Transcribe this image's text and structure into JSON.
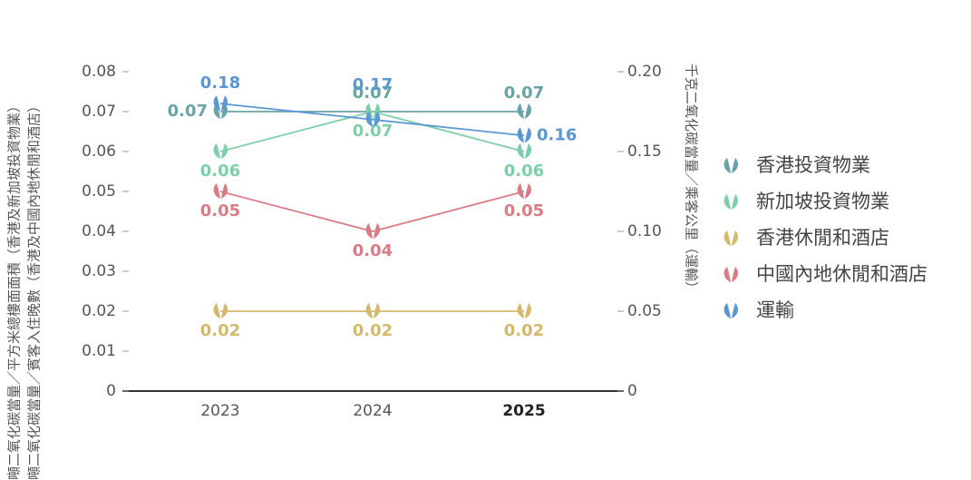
{
  "chart_data": {
    "type": "line",
    "y_label_lines": [
      "噸二氧化碳當量／平方米總樓面面積（香港及新加坡投資物業）",
      "噸二氧化碳當量／賓客入住晚數（香港及中國內地休閒和酒店）"
    ],
    "y2_label": "千克二氧化碳當量／乘客公里（運輸）",
    "categories": [
      "2023",
      "2024",
      "2025"
    ],
    "ylim": [
      0,
      0.08
    ],
    "yticks": [
      0,
      0.01,
      0.02,
      0.03,
      0.04,
      0.05,
      0.06,
      0.07,
      0.08
    ],
    "y2lim": [
      0,
      0.2
    ],
    "y2ticks": [
      0,
      0.05,
      {
        "value": 0.1,
        "label": "0.10"
      },
      0.15,
      {
        "value": 0.2,
        "label": "0.20"
      }
    ],
    "series": [
      {
        "name": "香港投資物業",
        "color": "#6aa3a6",
        "values": [
          0.07,
          0.07,
          0.07
        ]
      },
      {
        "name": "新加坡投資物業",
        "color": "#7ccfa6",
        "values": [
          0.06,
          0.07,
          0.06
        ]
      },
      {
        "name": "香港休閒和酒店",
        "color": "#d3b96c",
        "values": [
          0.02,
          0.02,
          0.02
        ]
      },
      {
        "name": "中國內地休閒和酒店",
        "color": "#d97c86",
        "values": [
          0.05,
          0.04,
          0.05
        ]
      },
      {
        "name": "運輸",
        "color": "#5b97d3",
        "values": [
          0.18,
          0.17,
          0.16
        ],
        "axis": "y2"
      }
    ]
  }
}
